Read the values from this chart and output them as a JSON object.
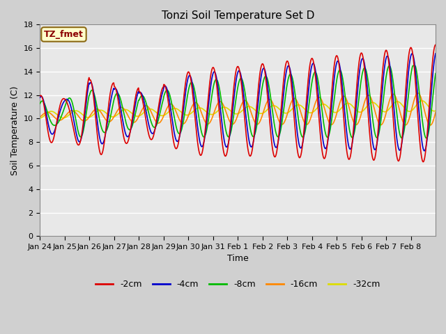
{
  "title": "Tonzi Soil Temperature Set D",
  "xlabel": "Time",
  "ylabel": "Soil Temperature (C)",
  "annotation": "TZ_fmet",
  "ylim": [
    0,
    18
  ],
  "yticks": [
    0,
    2,
    4,
    6,
    8,
    10,
    12,
    14,
    16,
    18
  ],
  "xtick_labels": [
    "Jan 24",
    "Jan 25",
    "Jan 26",
    "Jan 27",
    "Jan 28",
    "Jan 29",
    "Jan 30",
    "Jan 31",
    "Feb 1",
    "Feb 2",
    "Feb 3",
    "Feb 4",
    "Feb 5",
    "Feb 6",
    "Feb 7",
    "Feb 8"
  ],
  "series_colors": {
    "-2cm": "#dd0000",
    "-4cm": "#0000cc",
    "-8cm": "#00bb00",
    "-16cm": "#ff8800",
    "-32cm": "#dddd00"
  },
  "legend_labels": [
    "-2cm",
    "-4cm",
    "-8cm",
    "-16cm",
    "-32cm"
  ],
  "fig_bg_color": "#d0d0d0",
  "plot_bg_color": "#e8e8e8",
  "grid_color": "#ffffff"
}
